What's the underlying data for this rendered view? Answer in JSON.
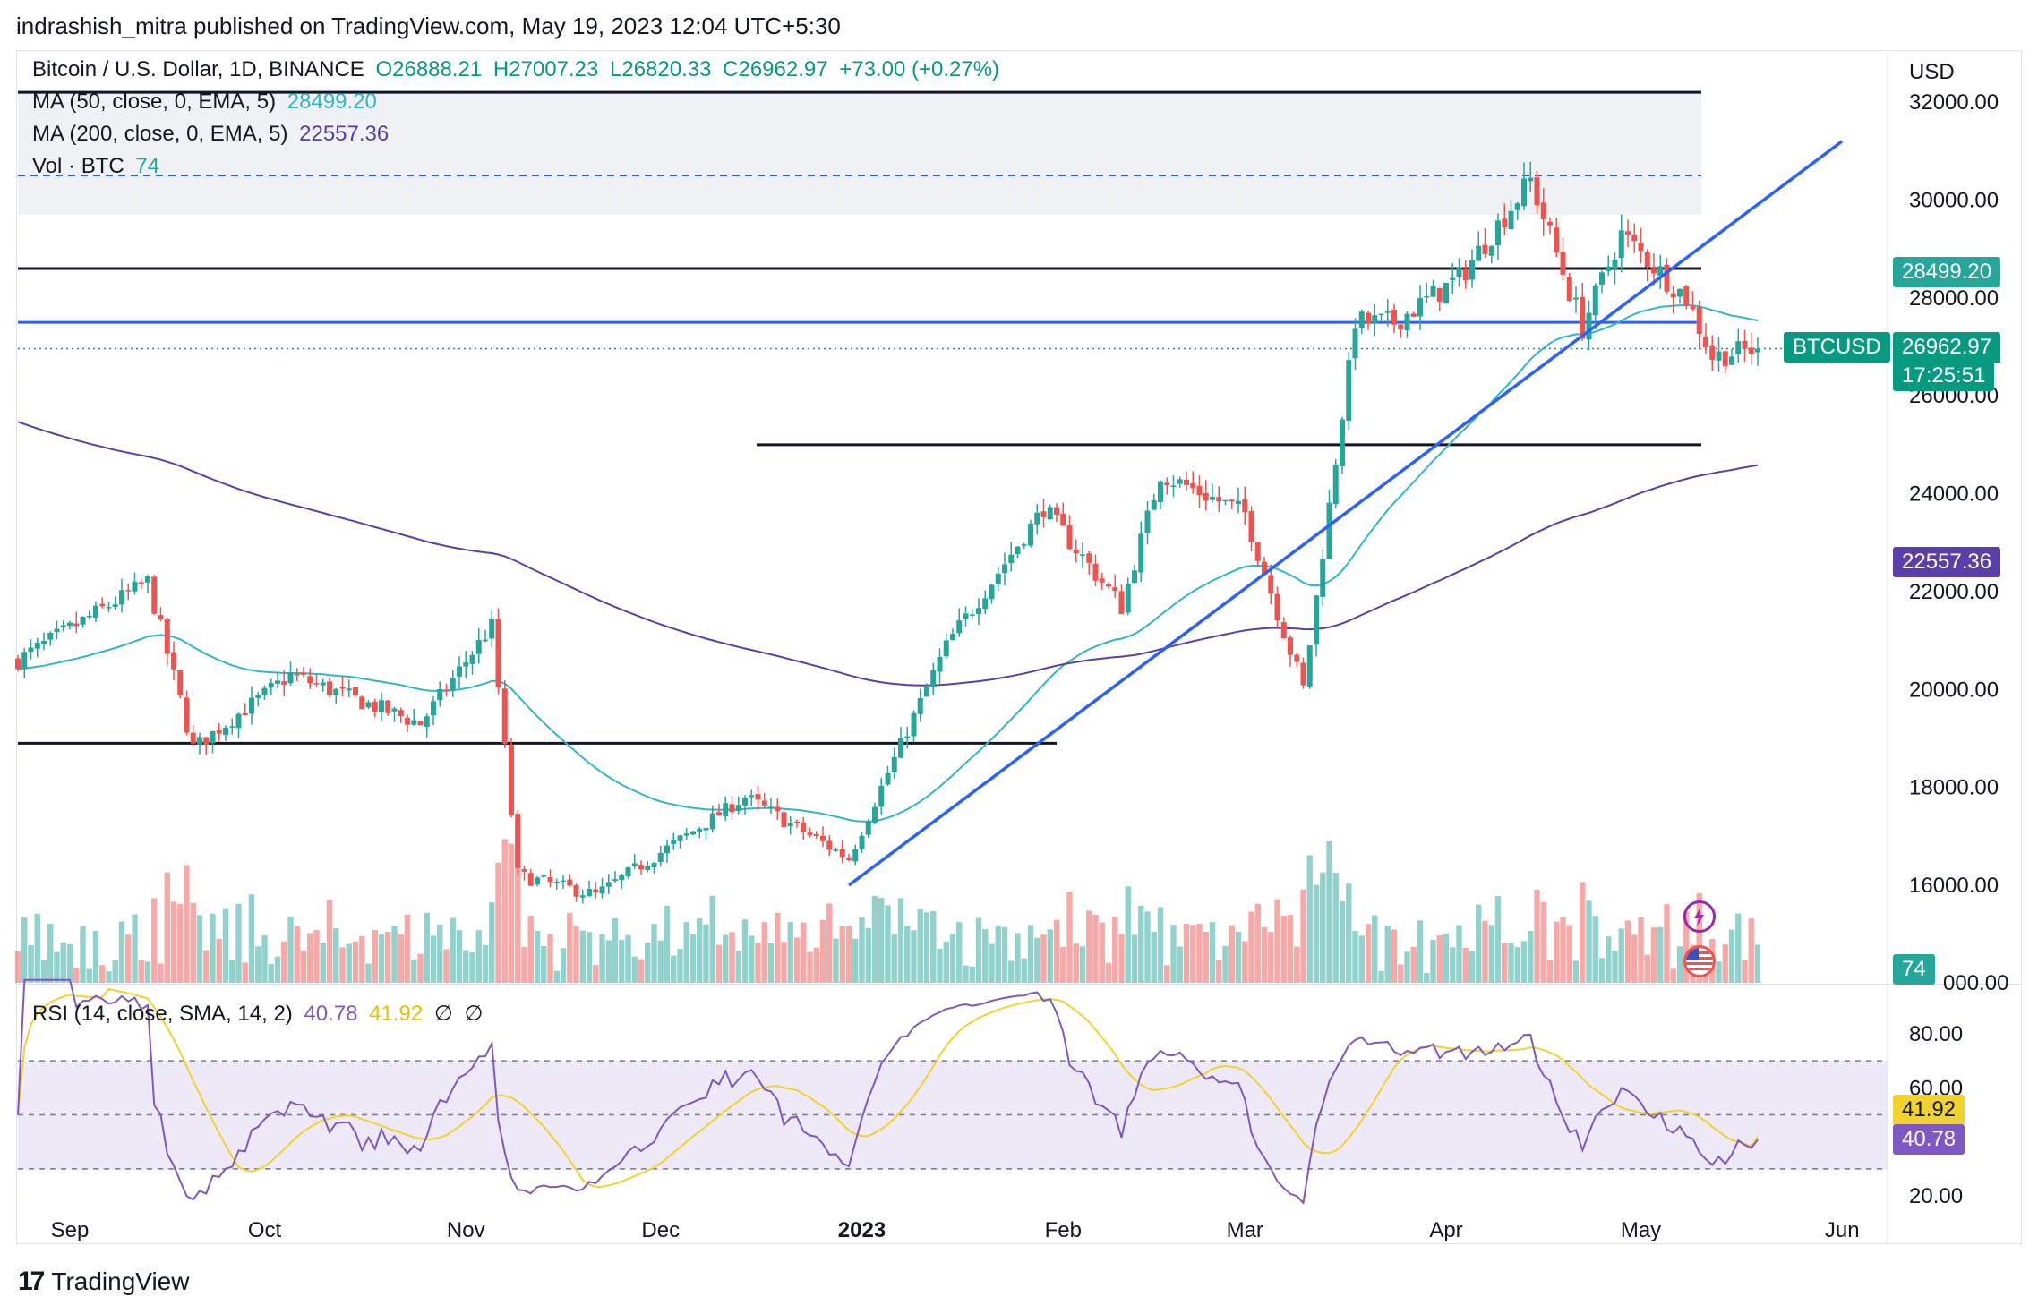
{
  "header": {
    "publisher_line": "indrashish_mitra published on TradingView.com, May 19, 2023 12:04 UTC+5:30"
  },
  "legend": {
    "symbol": "Bitcoin / U.S. Dollar, 1D, BINANCE",
    "open": "O26888.21",
    "high": "H27007.23",
    "low": "L26820.33",
    "close": "C26962.97",
    "change": "+73.00 (+0.27%)",
    "ma50_label": "MA (50, close, 0, EMA, 5)",
    "ma50_value": "28499.20",
    "ma200_label": "MA (200, close, 0, EMA, 5)",
    "ma200_value": "22557.36",
    "vol_label": "Vol · BTC",
    "vol_value": "74"
  },
  "rsi_legend": {
    "label": "RSI (14, close, SMA, 14, 2)",
    "rsi_value": "40.78",
    "sma_value": "41.92",
    "extra1": "∅",
    "extra2": "∅"
  },
  "price_axis": {
    "currency": "USD",
    "ticks": [
      "32000.00",
      "30000.00",
      "28000.00",
      "26000.00",
      "24000.00",
      "22000.00",
      "20000.00",
      "18000.00",
      "16000.00"
    ],
    "partial_tick": "000.00"
  },
  "rsi_axis": {
    "ticks": [
      "80.00",
      "60.00",
      "20.00"
    ]
  },
  "time_axis": {
    "labels": [
      "Sep",
      "Oct",
      "Nov",
      "Dec",
      "2023",
      "Feb",
      "Mar",
      "Apr",
      "May",
      "Jun"
    ]
  },
  "tags": {
    "ma50": "28499.20",
    "symbol_name": "BTCUSD",
    "last_price": "26962.97",
    "countdown": "17:25:51",
    "ma200": "22557.36",
    "volume": "74",
    "rsi_sma": "41.92",
    "rsi_value": "40.78"
  },
  "colors": {
    "bull": "#26a69a",
    "bear": "#ef5350",
    "ma50": "#2fb6c8",
    "ma200": "#5b3fa8",
    "trend": "#2962ff",
    "rsi": "#7e57c2",
    "rsi_sma": "#f2d22e"
  },
  "footer": {
    "brand": "TradingView"
  },
  "chart_data": {
    "type": "candlestick",
    "title": "Bitcoin / U.S. Dollar, 1D, BINANCE",
    "ylabel": "USD",
    "ylim": [
      15000,
      32500
    ],
    "x_range": [
      "2022-08-24",
      "2023-06-08"
    ],
    "anchors": [
      [
        "2022-08-24",
        20600
      ],
      [
        "2022-09-13",
        22200
      ],
      [
        "2022-09-20",
        18800
      ],
      [
        "2022-10-05",
        20300
      ],
      [
        "2022-10-25",
        19300
      ],
      [
        "2022-11-05",
        21300
      ],
      [
        "2022-11-09",
        16200
      ],
      [
        "2022-11-21",
        15800
      ],
      [
        "2022-12-14",
        17800
      ],
      [
        "2022-12-30",
        16550
      ],
      [
        "2023-01-14",
        20900
      ],
      [
        "2023-01-29",
        23700
      ],
      [
        "2023-02-10",
        21700
      ],
      [
        "2023-02-16",
        24400
      ],
      [
        "2023-03-01",
        23600
      ],
      [
        "2023-03-10",
        20000
      ],
      [
        "2023-03-18",
        27500
      ],
      [
        "2023-03-24",
        27500
      ],
      [
        "2023-04-03",
        28400
      ],
      [
        "2023-04-14",
        30400
      ],
      [
        "2023-04-22",
        27400
      ],
      [
        "2023-04-28",
        29300
      ],
      [
        "2023-05-08",
        28000
      ],
      [
        "2023-05-12",
        26800
      ],
      [
        "2023-05-19",
        26962.97
      ]
    ],
    "last": {
      "open": 26888.21,
      "high": 27007.23,
      "low": 26820.33,
      "close": 26962.97
    },
    "moving_averages": [
      {
        "name": "MA (50, close, 0, EMA, 5)",
        "last": 28499.2
      },
      {
        "name": "MA (200, close, 0, EMA, 5)",
        "last": 22557.36
      }
    ],
    "horizontal_levels": [
      32200,
      30500,
      28600,
      27500,
      25000,
      18900
    ],
    "trendline": {
      "from": [
        "2022-12-30",
        16000
      ],
      "to": [
        "2023-06-01",
        31200
      ]
    },
    "volume_last": 74,
    "rsi": {
      "period": 14,
      "last": 40.78,
      "sma_last": 41.92,
      "bands": [
        70,
        50,
        30
      ],
      "ylim": [
        15,
        95
      ]
    }
  }
}
